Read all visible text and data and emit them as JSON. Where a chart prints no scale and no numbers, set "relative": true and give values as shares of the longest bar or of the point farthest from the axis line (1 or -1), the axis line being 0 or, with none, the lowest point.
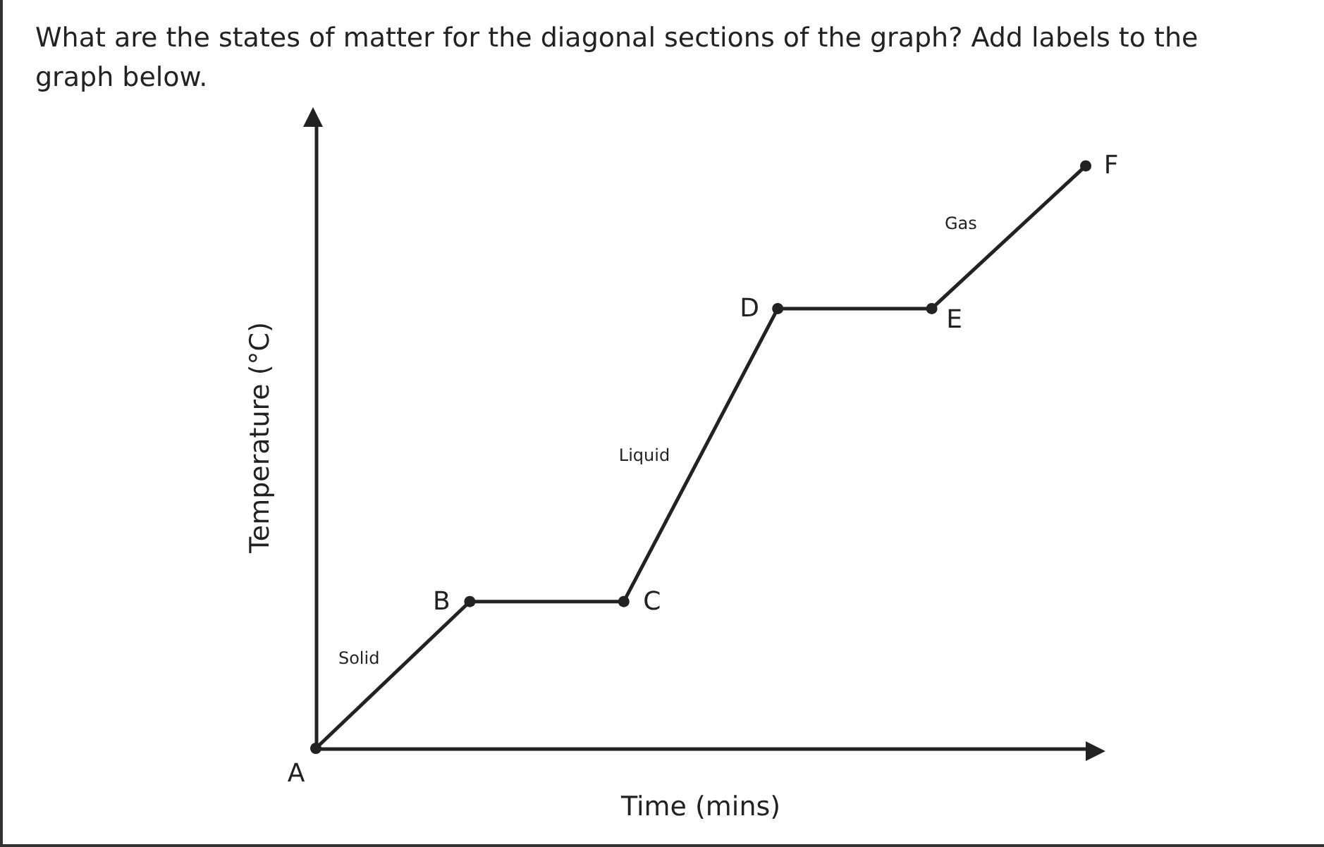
{
  "chart_data": {
    "type": "line",
    "title": "What are the states of matter for the diagonal sections of the graph? Add labels to the graph below.",
    "xlabel": "Time (mins)",
    "ylabel": "Temperature (°C)",
    "relative": true,
    "marker": "circle",
    "line_style": "solid",
    "categories": [
      null,
      null,
      null,
      null,
      null,
      null
    ],
    "series": [
      {
        "color": "#222222",
        "values": [
          0,
          0.252,
          0.252,
          0.755,
          0.755,
          1
        ]
      }
    ],
    "annotations": [
      "A",
      "B",
      "C",
      "D",
      "E",
      "F",
      "Solid",
      "Liquid",
      "Gas"
    ]
  }
}
